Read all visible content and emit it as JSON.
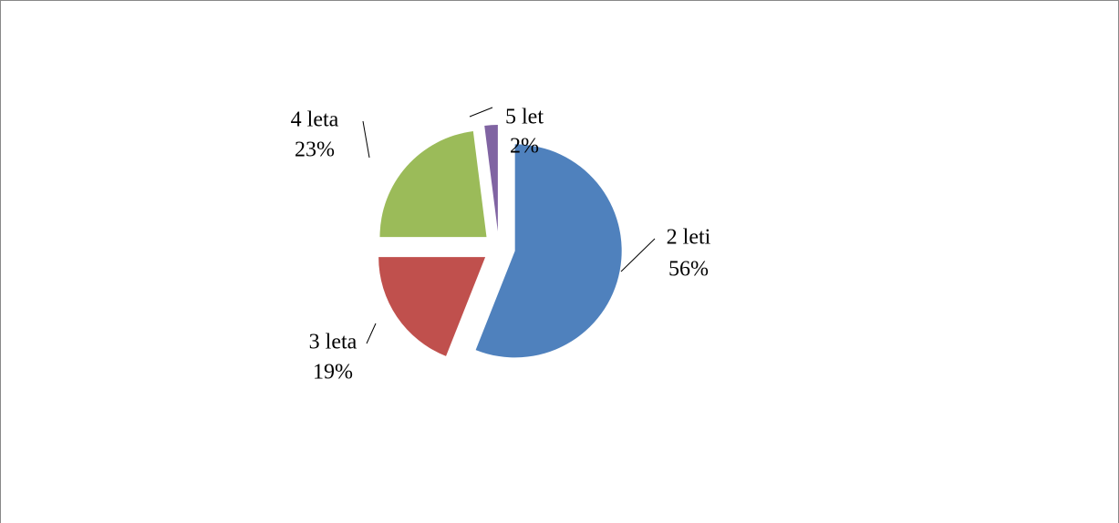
{
  "chart_data": {
    "type": "pie",
    "categories": [
      "2 leti",
      "3 leta",
      "4 leta",
      "5 let"
    ],
    "values": [
      56,
      19,
      23,
      2
    ],
    "value_labels": [
      "56%",
      "19%",
      "23%",
      "2%"
    ],
    "colors": [
      "#4f81bd",
      "#c0504d",
      "#9bbb59",
      "#8064a2"
    ]
  }
}
